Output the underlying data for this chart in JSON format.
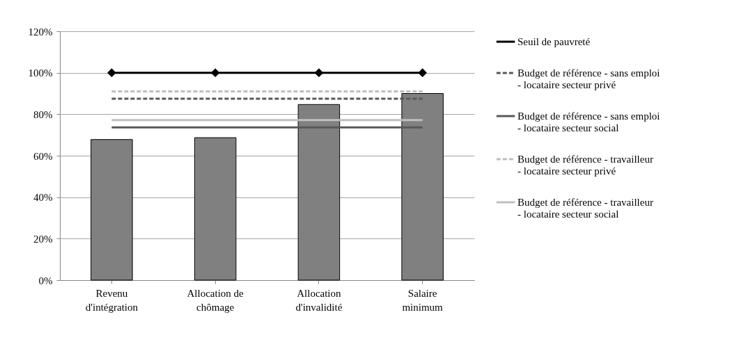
{
  "chart_data": {
    "type": "bar",
    "categories": [
      "Revenu d'intégration",
      "Allocation de chômage",
      "Allocation d'invalidité",
      "Salaire minimum"
    ],
    "series": [
      {
        "color": "#808080",
        "values": [
          67.8,
          68.7,
          84.7,
          90
        ]
      },
      {
        "type": "line",
        "name": "Seuil de pauvreté",
        "color": "#000000",
        "marker": "diamond",
        "line_style": "solid",
        "values": [
          100,
          100,
          100,
          100
        ]
      },
      {
        "type": "line",
        "name": "Budget de référence - sans emploi - locataire secteur privé",
        "color": "#595959",
        "marker": "none",
        "line_style": "dashed",
        "values": [
          87.5,
          87.5,
          87.5,
          87.5
        ]
      },
      {
        "type": "line",
        "name": "Budget de référence - sans emploi - locataire secteur social",
        "color": "#595959",
        "marker": "none",
        "line_style": "solid",
        "values": [
          73.7,
          73.7,
          73.7,
          73.7
        ]
      },
      {
        "type": "line",
        "name": "Budget de référence - travailleur - locataire secteur privé",
        "color": "#bfbfbf",
        "marker": "none",
        "line_style": "dashed",
        "values": [
          91,
          91,
          91,
          91
        ]
      },
      {
        "type": "line",
        "name": "Budget de référence - travailleur - locataire secteur social",
        "color": "#bfbfbf",
        "marker": "none",
        "line_style": "solid",
        "values": [
          77.2,
          77.2,
          77.2,
          77.2
        ]
      }
    ],
    "ylim": [
      0,
      120
    ],
    "yticks": [
      {
        "value": 0,
        "label": "0%"
      },
      {
        "value": 20,
        "label": "20%"
      },
      {
        "value": 40,
        "label": "40%"
      },
      {
        "value": 60,
        "label": "60%"
      },
      {
        "value": 80,
        "label": "80%"
      },
      {
        "value": 100,
        "label": "100%"
      },
      {
        "value": 120,
        "label": "120%"
      }
    ],
    "grid": "y",
    "legend": "right"
  }
}
